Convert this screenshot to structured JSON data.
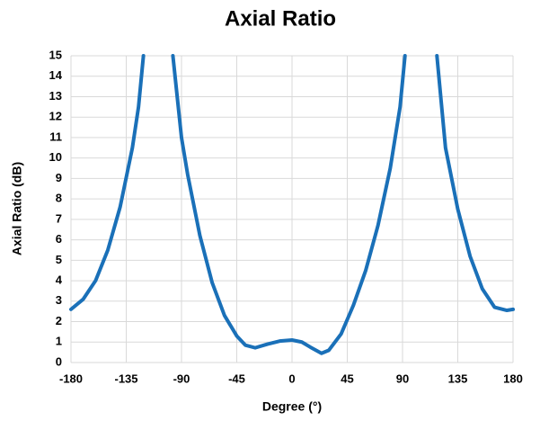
{
  "chart_data": {
    "type": "line",
    "title": "Axial Ratio",
    "xlabel": "Degree (°)",
    "ylabel": "Axial Ratio (dB)",
    "x": [
      -180,
      -170,
      -160,
      -150,
      -140,
      -130,
      -125,
      -121,
      -110,
      -97,
      -90,
      -85,
      -75,
      -65,
      -55,
      -45,
      -38,
      -30,
      -20,
      -10,
      0,
      8,
      15,
      24,
      30,
      40,
      45,
      50,
      60,
      70,
      80,
      88,
      92,
      105,
      118,
      125,
      135,
      145,
      155,
      165,
      175,
      180
    ],
    "series": [
      {
        "name": "Axial Ratio",
        "color": "#1a70b8",
        "values": [
          2.6,
          3.1,
          4.0,
          5.5,
          7.6,
          10.5,
          12.5,
          15,
          null,
          15,
          11,
          9.2,
          6.2,
          3.9,
          2.3,
          1.3,
          0.85,
          0.72,
          0.9,
          1.05,
          1.1,
          1.0,
          0.75,
          0.45,
          0.6,
          1.4,
          2.1,
          2.8,
          4.5,
          6.7,
          9.5,
          12.5,
          15,
          null,
          15,
          10.5,
          7.5,
          5.2,
          3.6,
          2.7,
          2.55,
          2.6
        ]
      }
    ],
    "xlim": [
      -180,
      180
    ],
    "xticks": [
      -180,
      -135,
      -90,
      -45,
      0,
      45,
      90,
      135,
      180
    ],
    "ylim": [
      0,
      15
    ],
    "yticks": [
      0,
      1,
      2,
      3,
      4,
      5,
      6,
      7,
      8,
      9,
      10,
      11,
      12,
      13,
      14,
      15
    ],
    "grid": true
  }
}
